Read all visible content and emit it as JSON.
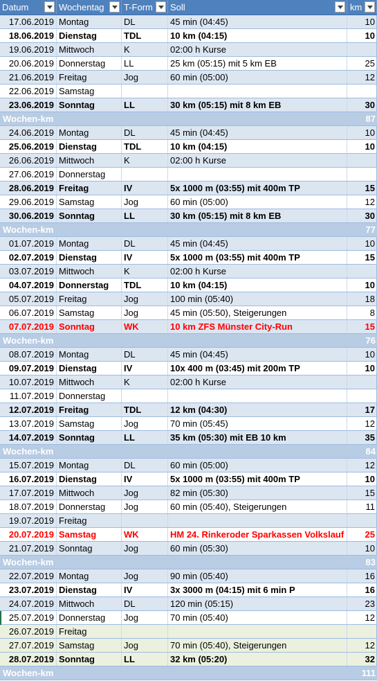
{
  "header": {
    "date": "Datum",
    "day": "Wochentag",
    "type": "T-Form",
    "soll": "Soll",
    "km": "km"
  },
  "week_label": "Wochen-km",
  "weeks": [
    {
      "rows": [
        {
          "date": "17.06.2019",
          "day": "Montag",
          "type": "DL",
          "soll": "45 min (04:45)",
          "km": "10",
          "style": "normal"
        },
        {
          "date": "18.06.2019",
          "day": "Dienstag",
          "type": "TDL",
          "soll": "10 km (04:15)",
          "km": "10",
          "style": "bold"
        },
        {
          "date": "19.06.2019",
          "day": "Mittwoch",
          "type": "K",
          "soll": "02:00 h Kurse",
          "km": "",
          "style": "normal"
        },
        {
          "date": "20.06.2019",
          "day": "Donnerstag",
          "type": "LL",
          "soll": "25 km (05:15) mit 5 km EB",
          "km": "25",
          "style": "normal"
        },
        {
          "date": "21.06.2019",
          "day": "Freitag",
          "type": "Jog",
          "soll": "60 min (05:00)",
          "km": "12",
          "style": "normal"
        },
        {
          "date": "22.06.2019",
          "day": "Samstag",
          "type": "",
          "soll": "",
          "km": "",
          "style": "normal"
        },
        {
          "date": "23.06.2019",
          "day": "Sonntag",
          "type": "LL",
          "soll": "30 km (05:15) mit 8 km EB",
          "km": "30",
          "style": "bold"
        }
      ],
      "total": "87"
    },
    {
      "rows": [
        {
          "date": "24.06.2019",
          "day": "Montag",
          "type": "DL",
          "soll": "45 min (04:45)",
          "km": "10",
          "style": "normal"
        },
        {
          "date": "25.06.2019",
          "day": "Dienstag",
          "type": "TDL",
          "soll": "10 km (04:15)",
          "km": "10",
          "style": "bold"
        },
        {
          "date": "26.06.2019",
          "day": "Mittwoch",
          "type": "K",
          "soll": "02:00 h Kurse",
          "km": "",
          "style": "normal"
        },
        {
          "date": "27.06.2019",
          "day": "Donnerstag",
          "type": "",
          "soll": "",
          "km": "",
          "style": "normal"
        },
        {
          "date": "28.06.2019",
          "day": "Freitag",
          "type": "IV",
          "soll": "5x 1000 m (03:55) mit 400m TP",
          "km": "15",
          "style": "bold"
        },
        {
          "date": "29.06.2019",
          "day": "Samstag",
          "type": "Jog",
          "soll": "60 min (05:00)",
          "km": "12",
          "style": "normal"
        },
        {
          "date": "30.06.2019",
          "day": "Sonntag",
          "type": "LL",
          "soll": "30 km (05:15) mit 8 km EB",
          "km": "30",
          "style": "bold"
        }
      ],
      "total": "77"
    },
    {
      "rows": [
        {
          "date": "01.07.2019",
          "day": "Montag",
          "type": "DL",
          "soll": "45 min (04:45)",
          "km": "10",
          "style": "normal"
        },
        {
          "date": "02.07.2019",
          "day": "Dienstag",
          "type": "IV",
          "soll": "5x 1000 m (03:55) mit 400m TP",
          "km": "15",
          "style": "bold"
        },
        {
          "date": "03.07.2019",
          "day": "Mittwoch",
          "type": "K",
          "soll": "02:00 h Kurse",
          "km": "",
          "style": "normal"
        },
        {
          "date": "04.07.2019",
          "day": "Donnerstag",
          "type": "TDL",
          "soll": "10 km (04:15)",
          "km": "10",
          "style": "bold"
        },
        {
          "date": "05.07.2019",
          "day": "Freitag",
          "type": "Jog",
          "soll": "100 min (05:40)",
          "km": "18",
          "style": "normal"
        },
        {
          "date": "06.07.2019",
          "day": "Samstag",
          "type": "Jog",
          "soll": "45 min (05:50), Steigerungen",
          "km": "8",
          "style": "normal"
        },
        {
          "date": "07.07.2019",
          "day": "Sonntag",
          "type": "WK",
          "soll": "10 km ZFS Münster City-Run",
          "km": "15",
          "style": "red"
        }
      ],
      "total": "76"
    },
    {
      "rows": [
        {
          "date": "08.07.2019",
          "day": "Montag",
          "type": "DL",
          "soll": "45 min (04:45)",
          "km": "10",
          "style": "normal"
        },
        {
          "date": "09.07.2019",
          "day": "Dienstag",
          "type": "IV",
          "soll": "10x 400 m (03:45) mit 200m TP",
          "km": "10",
          "style": "bold"
        },
        {
          "date": "10.07.2019",
          "day": "Mittwoch",
          "type": "K",
          "soll": "02:00 h Kurse",
          "km": "",
          "style": "normal"
        },
        {
          "date": "11.07.2019",
          "day": "Donnerstag",
          "type": "",
          "soll": "",
          "km": "",
          "style": "normal"
        },
        {
          "date": "12.07.2019",
          "day": "Freitag",
          "type": "TDL",
          "soll": "12 km (04:30)",
          "km": "17",
          "style": "bold"
        },
        {
          "date": "13.07.2019",
          "day": "Samstag",
          "type": "Jog",
          "soll": "70 min (05:45)",
          "km": "12",
          "style": "normal"
        },
        {
          "date": "14.07.2019",
          "day": "Sonntag",
          "type": "LL",
          "soll": "35 km (05:30) mit EB 10 km",
          "km": "35",
          "style": "bold"
        }
      ],
      "total": "84"
    },
    {
      "rows": [
        {
          "date": "15.07.2019",
          "day": "Montag",
          "type": "DL",
          "soll": "60 min (05:00)",
          "km": "12",
          "style": "normal"
        },
        {
          "date": "16.07.2019",
          "day": "Dienstag",
          "type": "IV",
          "soll": "5x 1000 m (03:55) mit 400m TP",
          "km": "10",
          "style": "bold"
        },
        {
          "date": "17.07.2019",
          "day": "Mittwoch",
          "type": "Jog",
          "soll": "82 min (05:30)",
          "km": "15",
          "style": "normal"
        },
        {
          "date": "18.07.2019",
          "day": "Donnerstag",
          "type": "Jog",
          "soll": "60 min (05:40), Steigerungen",
          "km": "11",
          "style": "normal"
        },
        {
          "date": "19.07.2019",
          "day": "Freitag",
          "type": "",
          "soll": "",
          "km": "",
          "style": "normal"
        },
        {
          "date": "20.07.2019",
          "day": "Samstag",
          "type": "WK",
          "soll": "HM 24. Rinkeroder Sparkassen Volkslauf",
          "km": "25",
          "style": "red"
        },
        {
          "date": "21.07.2019",
          "day": "Sonntag",
          "type": "Jog",
          "soll": "60 min (05:30)",
          "km": "10",
          "style": "normal"
        }
      ],
      "total": "83"
    },
    {
      "rows": [
        {
          "date": "22.07.2019",
          "day": "Montag",
          "type": "Jog",
          "soll": "90 min (05:40)",
          "km": "16",
          "style": "normal"
        },
        {
          "date": "23.07.2019",
          "day": "Dienstag",
          "type": "IV",
          "soll": "3x 3000 m (04:15) mit 6 min P",
          "km": "16",
          "style": "bold"
        },
        {
          "date": "24.07.2019",
          "day": "Mittwoch",
          "type": "DL",
          "soll": "120 min (05:15)",
          "km": "23",
          "style": "normal"
        },
        {
          "date": "25.07.2019",
          "day": "Donnerstag",
          "type": "Jog",
          "soll": "70 min (05:40)",
          "km": "12",
          "style": "normal"
        },
        {
          "date": "26.07.2019",
          "day": "Freitag",
          "type": "",
          "soll": "",
          "km": "",
          "style": "normal"
        },
        {
          "date": "27.07.2019",
          "day": "Samstag",
          "type": "Jog",
          "soll": "70 min (05:40), Steigerungen",
          "km": "12",
          "style": "normal"
        },
        {
          "date": "28.07.2019",
          "day": "Sonntag",
          "type": "LL",
          "soll": "32 km (05:20)",
          "km": "32",
          "style": "bold"
        }
      ],
      "total": "111"
    }
  ],
  "colors": {
    "header_bg": "#4f81bd",
    "band_blue": "#dce6f1",
    "band_green": "#ebf1de",
    "week_row": "#b8cce4",
    "race_red": "#ff0000"
  }
}
